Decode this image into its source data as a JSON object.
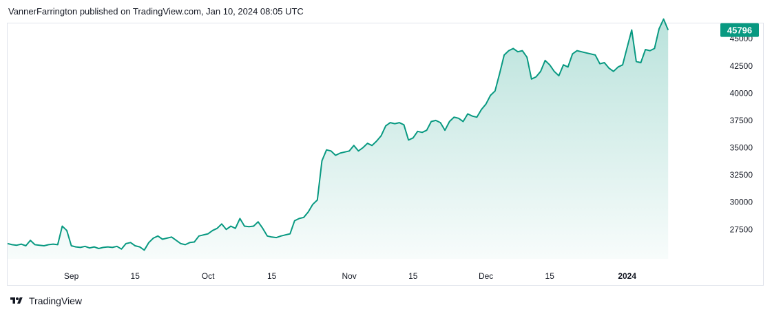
{
  "header": {
    "published": "VannerFarrington published on TradingView.com, Jan 10, 2024 08:05 UTC"
  },
  "footer": {
    "brand": "TradingView"
  },
  "colors": {
    "line": "#089981",
    "fill_top": "#089981",
    "fill_bottom": "#ffffff",
    "badge_bg": "#089981",
    "badge_text": "#ffffff",
    "axis_text": "#131722",
    "border": "#e0e3eb"
  },
  "chart_data": {
    "type": "area",
    "title": "",
    "xlabel": "",
    "ylabel": "",
    "ylim": [
      24800,
      46400
    ],
    "y_ticks": [
      27500,
      30000,
      32500,
      35000,
      37500,
      40000,
      42500,
      45000
    ],
    "x_ticks": [
      {
        "label": "Sep",
        "date": "2023-09-01",
        "bold": false
      },
      {
        "label": "15",
        "date": "2023-09-15",
        "bold": false
      },
      {
        "label": "Oct",
        "date": "2023-10-01",
        "bold": false
      },
      {
        "label": "15",
        "date": "2023-10-15",
        "bold": false
      },
      {
        "label": "Nov",
        "date": "2023-11-01",
        "bold": false
      },
      {
        "label": "15",
        "date": "2023-11-15",
        "bold": false
      },
      {
        "label": "Dec",
        "date": "2023-12-01",
        "bold": false
      },
      {
        "label": "15",
        "date": "2023-12-15",
        "bold": false
      },
      {
        "label": "2024",
        "date": "2024-01-01",
        "bold": true
      }
    ],
    "x_range": [
      "2023-08-18",
      "2024-01-21"
    ],
    "last_value": 45796,
    "last_label": "45796",
    "grid": false,
    "series": [
      {
        "x": [
          "2023-08-18",
          "2023-08-19",
          "2023-08-20",
          "2023-08-21",
          "2023-08-22",
          "2023-08-23",
          "2023-08-24",
          "2023-08-25",
          "2023-08-26",
          "2023-08-27",
          "2023-08-28",
          "2023-08-29",
          "2023-08-30",
          "2023-08-31",
          "2023-09-01",
          "2023-09-02",
          "2023-09-03",
          "2023-09-04",
          "2023-09-05",
          "2023-09-06",
          "2023-09-07",
          "2023-09-08",
          "2023-09-09",
          "2023-09-10",
          "2023-09-11",
          "2023-09-12",
          "2023-09-13",
          "2023-09-14",
          "2023-09-15",
          "2023-09-16",
          "2023-09-17",
          "2023-09-18",
          "2023-09-19",
          "2023-09-20",
          "2023-09-21",
          "2023-09-22",
          "2023-09-23",
          "2023-09-24",
          "2023-09-25",
          "2023-09-26",
          "2023-09-27",
          "2023-09-28",
          "2023-09-29",
          "2023-09-30",
          "2023-10-01",
          "2023-10-02",
          "2023-10-03",
          "2023-10-04",
          "2023-10-05",
          "2023-10-06",
          "2023-10-07",
          "2023-10-08",
          "2023-10-09",
          "2023-10-10",
          "2023-10-11",
          "2023-10-12",
          "2023-10-13",
          "2023-10-14",
          "2023-10-15",
          "2023-10-16",
          "2023-10-17",
          "2023-10-18",
          "2023-10-19",
          "2023-10-20",
          "2023-10-21",
          "2023-10-22",
          "2023-10-23",
          "2023-10-24",
          "2023-10-25",
          "2023-10-26",
          "2023-10-27",
          "2023-10-28",
          "2023-10-29",
          "2023-10-30",
          "2023-10-31",
          "2023-11-01",
          "2023-11-02",
          "2023-11-03",
          "2023-11-04",
          "2023-11-05",
          "2023-11-06",
          "2023-11-07",
          "2023-11-08",
          "2023-11-09",
          "2023-11-10",
          "2023-11-11",
          "2023-11-12",
          "2023-11-13",
          "2023-11-14",
          "2023-11-15",
          "2023-11-16",
          "2023-11-17",
          "2023-11-18",
          "2023-11-19",
          "2023-11-20",
          "2023-11-21",
          "2023-11-22",
          "2023-11-23",
          "2023-11-24",
          "2023-11-25",
          "2023-11-26",
          "2023-11-27",
          "2023-11-28",
          "2023-11-29",
          "2023-11-30",
          "2023-12-01",
          "2023-12-02",
          "2023-12-03",
          "2023-12-04",
          "2023-12-05",
          "2023-12-06",
          "2023-12-07",
          "2023-12-08",
          "2023-12-09",
          "2023-12-10",
          "2023-12-11",
          "2023-12-12",
          "2023-12-13",
          "2023-12-14",
          "2023-12-15",
          "2023-12-16",
          "2023-12-17",
          "2023-12-18",
          "2023-12-19",
          "2023-12-20",
          "2023-12-21",
          "2023-12-22",
          "2023-12-23",
          "2023-12-24",
          "2023-12-25",
          "2023-12-26",
          "2023-12-27",
          "2023-12-28",
          "2023-12-29",
          "2023-12-30",
          "2023-12-31",
          "2024-01-01",
          "2024-01-02",
          "2024-01-03",
          "2024-01-04",
          "2024-01-05",
          "2024-01-06",
          "2024-01-07",
          "2024-01-08",
          "2024-01-09",
          "2024-01-10"
        ],
        "values": [
          26200,
          26100,
          26050,
          26150,
          26000,
          26500,
          26100,
          26050,
          26000,
          26100,
          26150,
          26100,
          27800,
          27400,
          26000,
          25900,
          25850,
          25950,
          25800,
          25900,
          25750,
          25850,
          25900,
          25850,
          25950,
          25700,
          26200,
          26300,
          26000,
          25900,
          25600,
          26300,
          26700,
          26900,
          26600,
          26700,
          26800,
          26500,
          26200,
          26100,
          26300,
          26350,
          26900,
          27000,
          27100,
          27400,
          27600,
          28000,
          27500,
          27800,
          27600,
          28500,
          27800,
          27750,
          27800,
          28200,
          27600,
          26900,
          26800,
          26750,
          26900,
          27000,
          27100,
          28300,
          28500,
          28600,
          29100,
          29800,
          30200,
          33800,
          34800,
          34700,
          34300,
          34500,
          34600,
          34700,
          35200,
          34700,
          35000,
          35400,
          35200,
          35600,
          36100,
          37000,
          37300,
          37200,
          37300,
          37100,
          35700,
          35900,
          36500,
          36400,
          36600,
          37400,
          37500,
          37300,
          36600,
          37400,
          37800,
          37700,
          37400,
          38100,
          37900,
          37800,
          38500,
          39000,
          39800,
          40200,
          41800,
          43500,
          43900,
          44100,
          43800,
          43900,
          43300,
          41300,
          41500,
          42000,
          43000,
          42600,
          42000,
          41600,
          42600,
          42400,
          43600,
          43900,
          43800,
          43700,
          43600,
          43500,
          42700,
          42800,
          42300,
          42000,
          42400,
          42600,
          44200,
          45800,
          42900,
          42800,
          44000,
          43900,
          44100,
          45900,
          46800,
          45796
        ]
      }
    ]
  }
}
